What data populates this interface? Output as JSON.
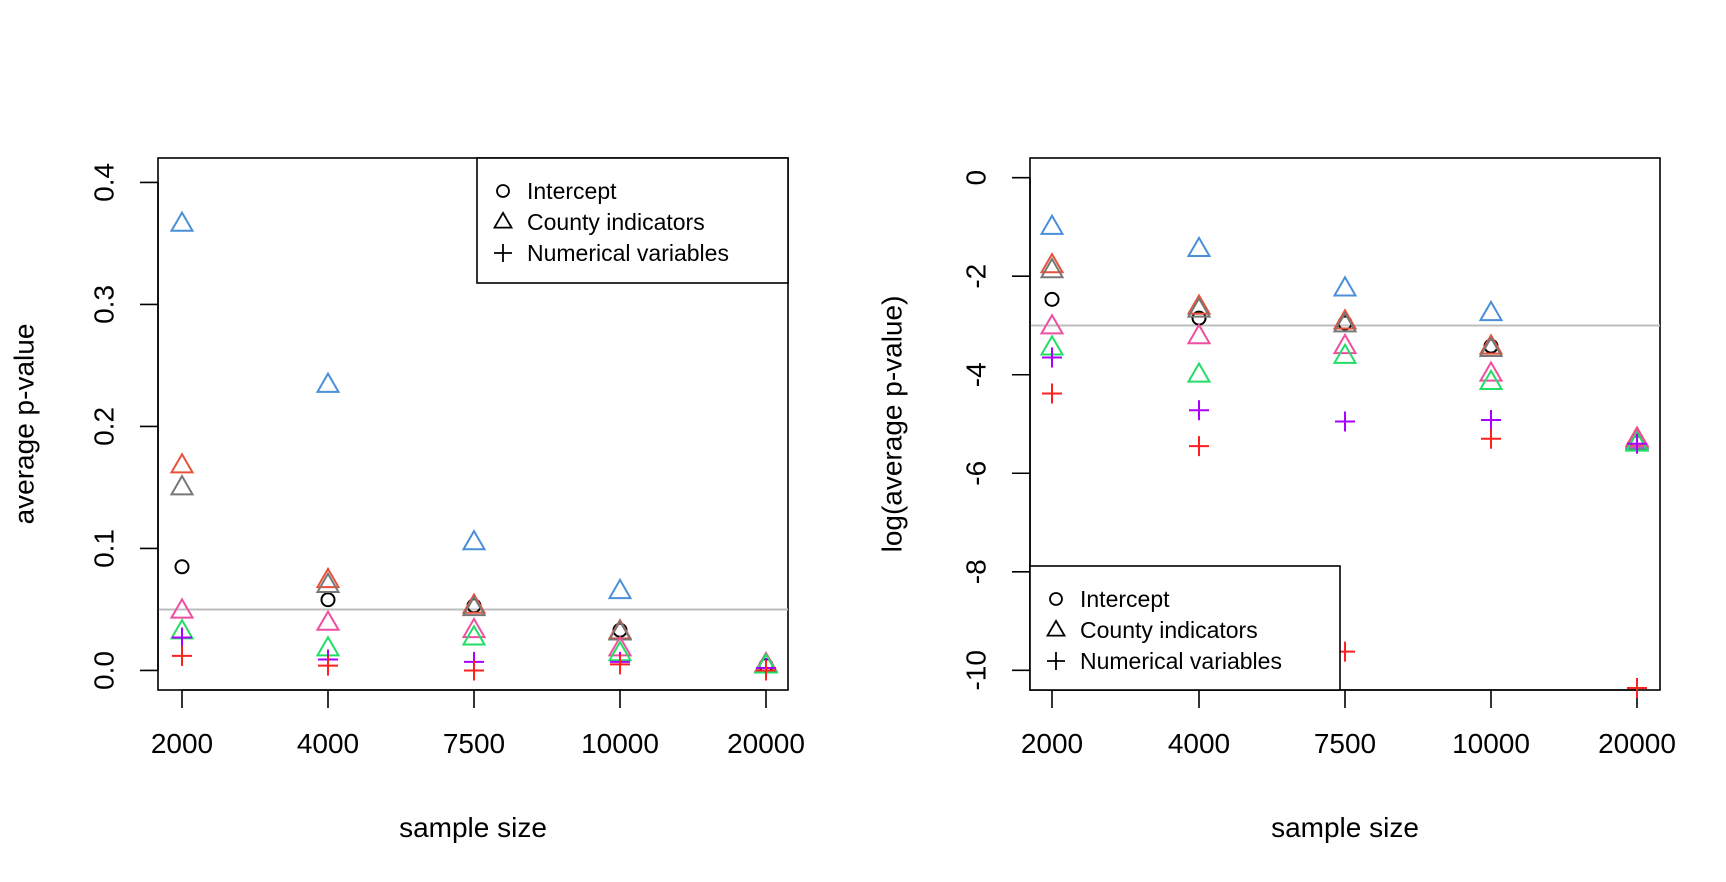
{
  "chart_data": [
    {
      "type": "scatter",
      "panel": "left",
      "x_categories": [
        "2000",
        "4000",
        "7500",
        "10000",
        "20000"
      ],
      "xlabel": "sample size",
      "ylabel": "average p-value",
      "ylim": [
        -0.016,
        0.42
      ],
      "yticks": [
        "0.0",
        "0.1",
        "0.2",
        "0.3",
        "0.4"
      ],
      "reference_line": 0.05,
      "legend": {
        "position": "top-right",
        "entries": [
          {
            "label": "Intercept",
            "symbol": "circle"
          },
          {
            "label": "County indicators",
            "symbol": "triangle"
          },
          {
            "label": "Numerical variables",
            "symbol": "plus"
          }
        ]
      },
      "series": [
        {
          "symbol": "circle",
          "color": "#000000",
          "values": [
            0.085,
            0.058,
            0.053,
            0.033,
            0.004
          ]
        },
        {
          "symbol": "triangle",
          "color": "#4a90d9",
          "values": [
            0.366,
            0.234,
            0.105,
            0.065,
            0.004
          ]
        },
        {
          "symbol": "triangle",
          "color": "#e8523a",
          "values": [
            0.168,
            0.074,
            0.053,
            0.032,
            0.005
          ]
        },
        {
          "symbol": "triangle",
          "color": "#777777",
          "values": [
            0.15,
            0.07,
            0.051,
            0.031,
            0.004
          ]
        },
        {
          "symbol": "triangle",
          "color": "#ee4fa0",
          "values": [
            0.049,
            0.039,
            0.033,
            0.018,
            0.005
          ]
        },
        {
          "symbol": "triangle",
          "color": "#22dd66",
          "values": [
            0.032,
            0.018,
            0.027,
            0.014,
            0.004
          ]
        },
        {
          "symbol": "plus",
          "color": "#aa00ff",
          "values": [
            0.027,
            0.009,
            0.007,
            0.007,
            0.002
          ]
        },
        {
          "symbol": "plus",
          "color": "#ff1f1f",
          "values": [
            0.012,
            0.004,
            0.0,
            0.005,
            0.0
          ]
        }
      ]
    },
    {
      "type": "scatter",
      "panel": "right",
      "x_categories": [
        "2000",
        "4000",
        "7500",
        "10000",
        "20000"
      ],
      "xlabel": "sample size",
      "ylabel": "log(average p-value)",
      "ylim": [
        -10.4,
        0.4
      ],
      "yticks": [
        "0",
        "-2",
        "-4",
        "-6",
        "-8",
        "-10"
      ],
      "reference_line": -3.0,
      "legend": {
        "position": "bottom-left",
        "entries": [
          {
            "label": "Intercept",
            "symbol": "circle"
          },
          {
            "label": "County indicators",
            "symbol": "triangle"
          },
          {
            "label": "Numerical variables",
            "symbol": "plus"
          }
        ]
      },
      "series": [
        {
          "symbol": "circle",
          "color": "#000000",
          "values": [
            -2.47,
            -2.85,
            -2.95,
            -3.42,
            -5.38
          ]
        },
        {
          "symbol": "triangle",
          "color": "#4a90d9",
          "values": [
            -1.0,
            -1.45,
            -2.25,
            -2.75,
            -5.35
          ]
        },
        {
          "symbol": "triangle",
          "color": "#e8523a",
          "values": [
            -1.78,
            -2.62,
            -2.92,
            -3.43,
            -5.3
          ]
        },
        {
          "symbol": "triangle",
          "color": "#777777",
          "values": [
            -1.88,
            -2.68,
            -2.98,
            -3.48,
            -5.38
          ]
        },
        {
          "symbol": "triangle",
          "color": "#ee4fa0",
          "values": [
            -3.02,
            -3.22,
            -3.42,
            -3.98,
            -5.32
          ]
        },
        {
          "symbol": "triangle",
          "color": "#22dd66",
          "values": [
            -3.45,
            -4.0,
            -3.62,
            -4.15,
            -5.4
          ]
        },
        {
          "symbol": "plus",
          "color": "#aa00ff",
          "values": [
            -3.65,
            -4.72,
            -4.95,
            -4.92,
            -5.4
          ]
        },
        {
          "symbol": "plus",
          "color": "#ff1f1f",
          "values": [
            -4.38,
            -5.45,
            -9.62,
            -5.3,
            -10.36
          ]
        }
      ]
    }
  ]
}
